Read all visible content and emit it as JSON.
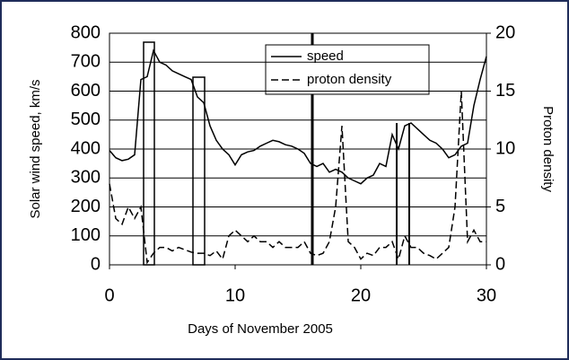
{
  "chart_data": {
    "type": "line",
    "xlabel": "Days of November 2005",
    "ylabel": "Solar wind speed, km/s",
    "y2label": "Proton density",
    "x": [
      0,
      0.5,
      1,
      1.5,
      2,
      2.5,
      3,
      3.5,
      4,
      4.5,
      5,
      5.5,
      6,
      6.5,
      7,
      7.5,
      8,
      8.5,
      9,
      9.5,
      10,
      10.5,
      11,
      11.5,
      12,
      12.5,
      13,
      13.5,
      14,
      14.5,
      15,
      15.5,
      16,
      16.5,
      17,
      17.5,
      18,
      18.5,
      19,
      19.5,
      20,
      20.5,
      21,
      21.5,
      22,
      22.5,
      23,
      23.5,
      24,
      24.5,
      25,
      25.5,
      26,
      26.5,
      27,
      27.5,
      28,
      28.5,
      29,
      29.5,
      30
    ],
    "series": [
      {
        "name": "speed",
        "color": "#000000",
        "style": "solid",
        "values": [
          395,
          370,
          360,
          365,
          380,
          640,
          650,
          740,
          700,
          690,
          670,
          660,
          650,
          640,
          580,
          560,
          480,
          430,
          400,
          380,
          345,
          380,
          390,
          395,
          410,
          420,
          430,
          425,
          415,
          410,
          400,
          385,
          350,
          340,
          350,
          320,
          330,
          320,
          300,
          290,
          280,
          300,
          310,
          350,
          340,
          450,
          400,
          480,
          490,
          470,
          450,
          430,
          420,
          400,
          370,
          380,
          410,
          420,
          550,
          640,
          720
        ]
      },
      {
        "name": "proton density",
        "color": "#000000",
        "style": "dashed",
        "axis": "y2",
        "values": [
          7,
          4,
          3.5,
          5,
          4,
          5,
          0.2,
          1,
          1.5,
          1.5,
          1.2,
          1.5,
          1.3,
          1.1,
          1,
          1,
          0.8,
          1.2,
          0.5,
          2.5,
          3,
          2.5,
          2,
          2.5,
          2,
          2,
          1.5,
          2,
          1.5,
          1.5,
          1.5,
          2,
          1,
          0.8,
          1,
          2,
          5,
          12,
          2,
          1.5,
          0.5,
          1,
          0.8,
          1.5,
          1.5,
          2,
          0.5,
          2.5,
          1.5,
          1.5,
          1,
          0.8,
          0.5,
          1,
          1.5,
          5,
          15,
          2,
          3,
          2,
          2
        ]
      }
    ],
    "xlim": [
      0,
      30
    ],
    "xticks": [
      0,
      10,
      20,
      30
    ],
    "ylim": [
      0,
      800
    ],
    "yticks": [
      0,
      100,
      200,
      300,
      400,
      500,
      600,
      700,
      800
    ],
    "y2lim": [
      0,
      20
    ],
    "y2ticks": [
      0,
      5,
      10,
      15,
      20
    ],
    "grid": true
  }
}
